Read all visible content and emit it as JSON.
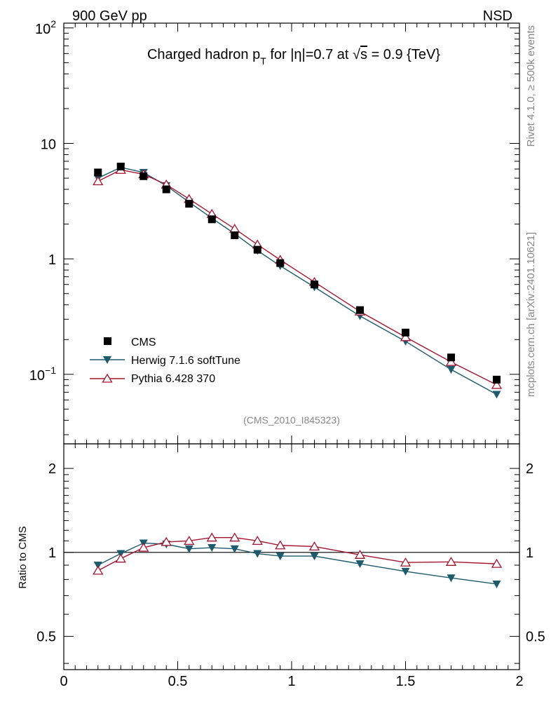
{
  "header": {
    "left_label": "900 GeV pp",
    "right_label": "NSD"
  },
  "side": {
    "rivet_label": "Rivet 4.1.0, ≥ 500k events",
    "mcplots_label": "mcplots.cern.ch [arXiv:2401.10621]"
  },
  "colors": {
    "cms": "#000000",
    "herwig": "#1d5a6b",
    "pythia": "#a3152f",
    "axis": "#000000",
    "grey_text": "#888888"
  },
  "chart_data": [
    {
      "type": "scatter",
      "panel": "main",
      "title": "Charged hadron p_T for |η|=0.7 at √s = 0.9 {TeV}",
      "title_parts": {
        "prefix": "Charged hadron p",
        "subscript": "T",
        "mid": " for |η|=0.7 at ",
        "sqrt_symbol": "√",
        "sqrt_arg": "s",
        "suffix": " = 0.9 {TeV}"
      },
      "watermark": "(CMS_2010_I845323)",
      "y_scale": "log",
      "xlim": [
        0,
        2
      ],
      "ylim": [
        0.025,
        110
      ],
      "yticks_major": [
        {
          "value": 0.1,
          "base": "10",
          "exp": "−1"
        },
        {
          "value": 1,
          "base": "1",
          "exp": ""
        },
        {
          "value": 10,
          "base": "10",
          "exp": ""
        },
        {
          "value": 100,
          "base": "10",
          "exp": "2"
        }
      ],
      "legend_position": "lower-left",
      "x": [
        0.15,
        0.25,
        0.35,
        0.45,
        0.55,
        0.65,
        0.75,
        0.85,
        0.95,
        1.1,
        1.3,
        1.5,
        1.7,
        1.9
      ],
      "series": [
        {
          "name": "CMS",
          "marker": "square",
          "values": [
            5.6,
            6.3,
            5.2,
            4.0,
            3.0,
            2.2,
            1.6,
            1.2,
            0.92,
            0.6,
            0.36,
            0.23,
            0.14,
            0.09
          ]
        },
        {
          "name": "Herwig 7.1.6 softTune",
          "marker": "triangle-down",
          "values": [
            5.0,
            6.2,
            5.6,
            4.3,
            3.1,
            2.25,
            1.65,
            1.18,
            0.87,
            0.57,
            0.32,
            0.193,
            0.11,
            0.067
          ]
        },
        {
          "name": "Pythia 6.428 370",
          "marker": "triangle-up-open",
          "values": [
            4.7,
            5.9,
            5.4,
            4.4,
            3.3,
            2.45,
            1.82,
            1.33,
            0.98,
            0.63,
            0.35,
            0.21,
            0.128,
            0.081
          ]
        }
      ]
    },
    {
      "type": "line",
      "panel": "ratio",
      "ylabel": "Ratio to CMS",
      "y_scale": "log",
      "xlim": [
        0,
        2
      ],
      "ylim": [
        0.38,
        2.45
      ],
      "yticks_major": [
        {
          "value": 0.5,
          "label": "0.5"
        },
        {
          "value": 1,
          "label": "1"
        },
        {
          "value": 2,
          "label": "2"
        }
      ],
      "xticks_major": [
        {
          "value": 0,
          "label": "0"
        },
        {
          "value": 0.5,
          "label": "0.5"
        },
        {
          "value": 1,
          "label": "1"
        },
        {
          "value": 1.5,
          "label": "1.5"
        },
        {
          "value": 2,
          "label": "2"
        }
      ],
      "reference_line": 1,
      "x": [
        0.15,
        0.25,
        0.35,
        0.45,
        0.55,
        0.65,
        0.75,
        0.85,
        0.95,
        1.1,
        1.3,
        1.5,
        1.7,
        1.9
      ],
      "series": [
        {
          "name": "Herwig 7.1.6 softTune",
          "marker": "triangle-down",
          "values": [
            0.9,
            0.99,
            1.08,
            1.07,
            1.03,
            1.04,
            1.03,
            0.99,
            0.97,
            0.97,
            0.91,
            0.855,
            0.81,
            0.77
          ]
        },
        {
          "name": "Pythia 6.428 370",
          "marker": "triangle-up-open",
          "values": [
            0.86,
            0.95,
            1.04,
            1.09,
            1.1,
            1.13,
            1.13,
            1.1,
            1.06,
            1.05,
            0.98,
            0.92,
            0.925,
            0.91
          ]
        }
      ]
    }
  ]
}
